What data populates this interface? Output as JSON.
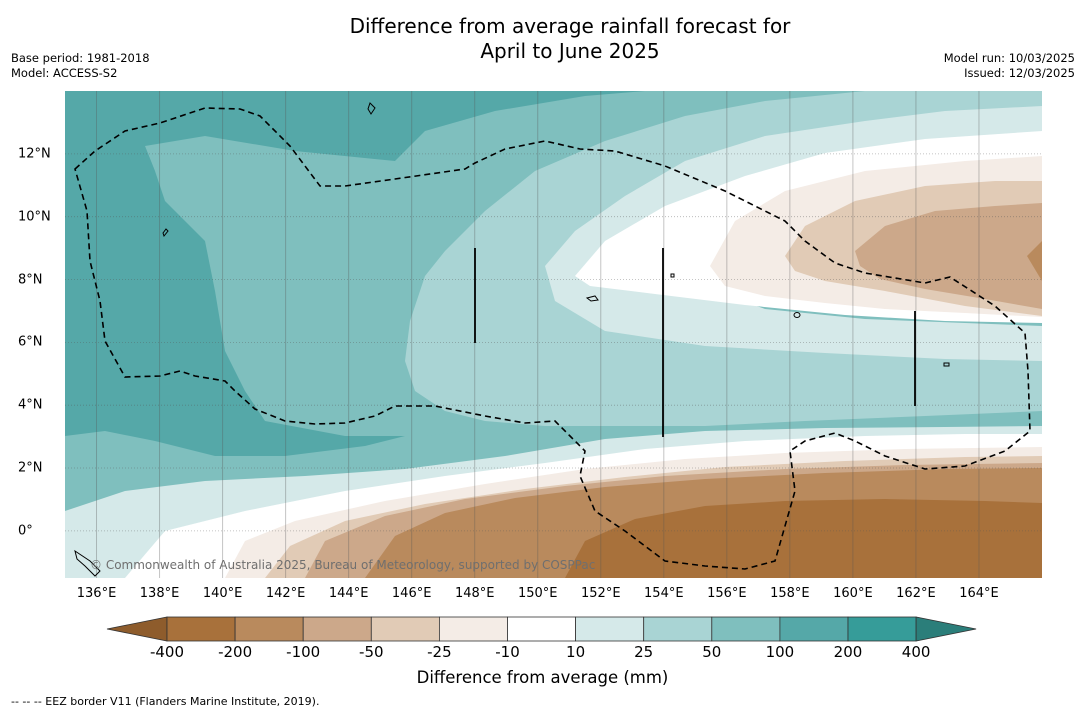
{
  "title": {
    "line1": "Difference from average rainfall forecast for",
    "line2": "April to June 2025"
  },
  "meta_left": {
    "base_period": "Base period: 1981-2018",
    "model": "Model: ACCESS-S2"
  },
  "meta_right": {
    "model_run": "Model run: 10/03/2025",
    "issued": "Issued: 12/03/2025"
  },
  "map": {
    "lon_labels": [
      "136°E",
      "138°E",
      "140°E",
      "142°E",
      "144°E",
      "146°E",
      "148°E",
      "150°E",
      "152°E",
      "154°E",
      "156°E",
      "158°E",
      "160°E",
      "162°E",
      "164°E"
    ],
    "lat_labels": [
      "12°N",
      "10°N",
      "8°N",
      "6°N",
      "4°N",
      "2°N",
      "0°"
    ],
    "lon_range": [
      135,
      166
    ],
    "lat_range": [
      -1.5,
      14
    ],
    "copyright": "© Commonwealth of Australia 2025, Bureau of Meteorology, supported by COSPPac",
    "border_style": "dashed",
    "grid": true
  },
  "colorbar": {
    "tick_labels": [
      "-400",
      "-200",
      "-100",
      "-50",
      "-25",
      "-10",
      "10",
      "25",
      "50",
      "100",
      "200",
      "400"
    ],
    "colors": [
      "#a8713b",
      "#b98a5d",
      "#cca88a",
      "#e1cbb6",
      "#f4ece6",
      "#ffffff",
      "#d5e9e9",
      "#a9d4d4",
      "#7fbfbe",
      "#55a8a8",
      "#369c99"
    ],
    "under_color": "#8e5c2c",
    "over_color": "#2b7e7a",
    "label": "Difference from average (mm)"
  },
  "footnote": "-- -- -- EEZ border V11 (Flanders Marine Institute, 2019)."
}
